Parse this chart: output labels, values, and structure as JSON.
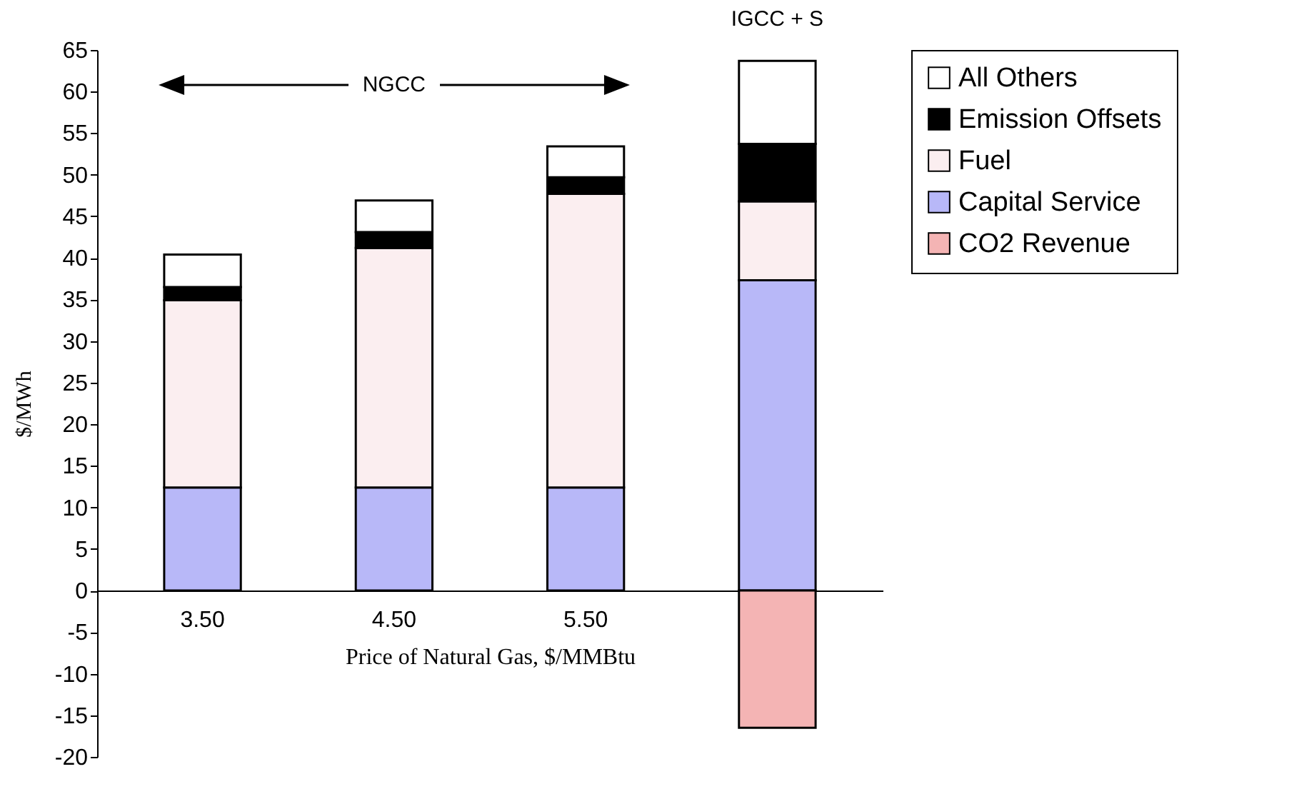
{
  "chart_data": {
    "type": "bar",
    "stacked": true,
    "xlabel": "Price of Natural Gas, $/MMBtu",
    "ylabel": "$/MWh",
    "categories": [
      "3.50",
      "4.50",
      "5.50",
      null
    ],
    "series": [
      {
        "name": "Capital Service",
        "color": "#b8b8f8",
        "values": [
          12.4,
          12.4,
          12.4,
          37.3
        ]
      },
      {
        "name": "Fuel",
        "color": "#fbeef0",
        "values": [
          22.5,
          28.8,
          35.3,
          9.5
        ]
      },
      {
        "name": "Emission Offsets",
        "color": "#000000",
        "values": [
          1.6,
          1.9,
          2.0,
          6.9
        ]
      },
      {
        "name": "All Others",
        "color": "#ffffff",
        "values": [
          3.9,
          3.8,
          3.7,
          10.0
        ]
      },
      {
        "name": "CO2 Revenue",
        "color": "#f4b4b4",
        "values": [
          null,
          null,
          null,
          -16.5
        ]
      }
    ],
    "ylim": [
      -20,
      65
    ],
    "yticks": [
      -20,
      -15,
      -10,
      -5,
      0,
      5,
      10,
      15,
      20,
      25,
      30,
      35,
      40,
      45,
      50,
      55,
      60,
      65
    ],
    "annotations": [
      "NGCC",
      "IGCC + S"
    ],
    "grid": false,
    "legend": "right"
  }
}
